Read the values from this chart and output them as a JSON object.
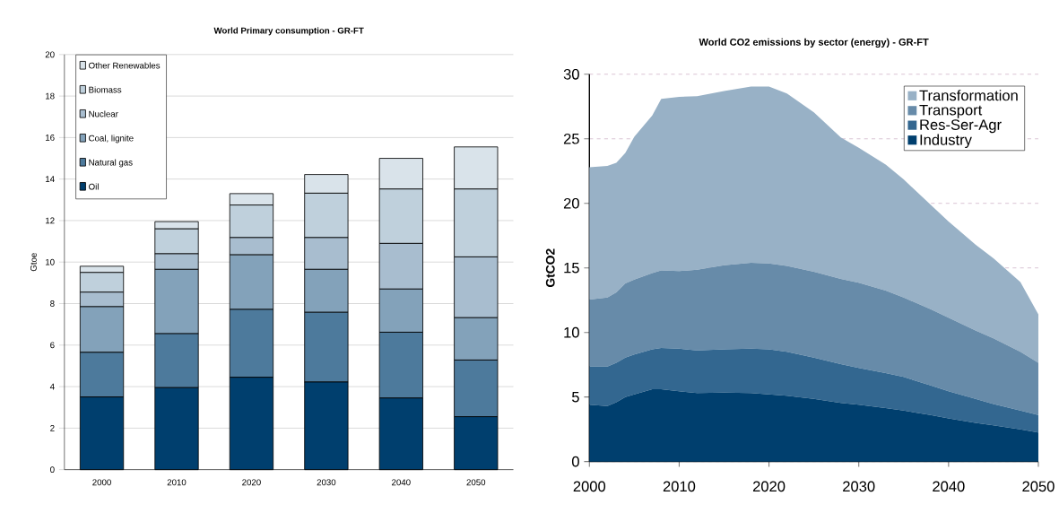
{
  "chart_data": [
    {
      "type": "bar",
      "stacked": true,
      "title": "World Primary  consumption - GR-FT",
      "ylabel": "Gtoe",
      "categories": [
        "2000",
        "2010",
        "2020",
        "2030",
        "2040",
        "2050"
      ],
      "ylim": [
        0,
        20
      ],
      "yticks": [
        0,
        2,
        4,
        6,
        8,
        10,
        12,
        14,
        16,
        18,
        20
      ],
      "grid": "y",
      "legend": "top left",
      "series": [
        {
          "name": "Oil",
          "color": "#003f6e",
          "values": [
            3.5,
            3.95,
            4.45,
            4.22,
            3.45,
            2.55
          ]
        },
        {
          "name": "Natural gas",
          "color": "#4d7a9c",
          "values": [
            2.15,
            2.6,
            3.27,
            3.36,
            3.17,
            2.73
          ]
        },
        {
          "name": "Coal, lignite",
          "color": "#83a2ba",
          "values": [
            2.2,
            3.1,
            2.63,
            2.07,
            2.08,
            2.04
          ]
        },
        {
          "name": "Nuclear",
          "color": "#a8bdcf",
          "values": [
            0.7,
            0.75,
            0.83,
            1.53,
            2.2,
            2.93
          ]
        },
        {
          "name": "Biomass",
          "color": "#bfd0dc",
          "values": [
            0.95,
            1.2,
            1.57,
            2.14,
            2.62,
            3.27
          ]
        },
        {
          "name": "Other Renewables",
          "color": "#d9e3ea",
          "values": [
            0.3,
            0.35,
            0.55,
            0.9,
            1.48,
            2.03
          ]
        }
      ]
    },
    {
      "type": "area",
      "stacked": true,
      "title": "World CO2 emissions by sector (energy) - GR-FT",
      "ylabel": "GtCO2",
      "x": [
        2000,
        2002,
        2003,
        2004,
        2005,
        2007,
        2008,
        2010,
        2012,
        2015,
        2018,
        2020,
        2022,
        2025,
        2028,
        2030,
        2033,
        2035,
        2038,
        2040,
        2043,
        2045,
        2048,
        2050
      ],
      "xlim": [
        2000,
        2050
      ],
      "xticks": [
        2000,
        2010,
        2020,
        2030,
        2040,
        2050
      ],
      "ylim": [
        0,
        30
      ],
      "yticks": [
        0,
        5,
        10,
        15,
        20,
        25,
        30
      ],
      "grid": "y",
      "legend": "top right",
      "series": [
        {
          "name": "Industry",
          "color": "#003f6e",
          "values": [
            4.4,
            4.3,
            4.6,
            5.0,
            5.2,
            5.6,
            5.6,
            5.45,
            5.3,
            5.35,
            5.3,
            5.2,
            5.1,
            4.85,
            4.55,
            4.4,
            4.15,
            3.95,
            3.6,
            3.35,
            3.0,
            2.8,
            2.5,
            2.25
          ]
        },
        {
          "name": "Res-Ser-Agr",
          "color": "#336790",
          "values": [
            2.95,
            3.05,
            3.05,
            3.05,
            3.1,
            3.1,
            3.2,
            3.3,
            3.3,
            3.35,
            3.45,
            3.5,
            3.4,
            3.2,
            3.0,
            2.85,
            2.7,
            2.6,
            2.3,
            2.1,
            1.85,
            1.65,
            1.45,
            1.35
          ]
        },
        {
          "name": "Transport",
          "color": "#678ba9",
          "values": [
            5.2,
            5.35,
            5.45,
            5.75,
            5.8,
            5.9,
            6.0,
            6.0,
            6.25,
            6.5,
            6.65,
            6.65,
            6.65,
            6.65,
            6.6,
            6.6,
            6.4,
            6.15,
            5.9,
            5.7,
            5.3,
            5.1,
            4.55,
            4.05
          ]
        },
        {
          "name": "Transformation",
          "color": "#98b1c6",
          "values": [
            10.25,
            10.2,
            10.05,
            10.1,
            11.05,
            12.2,
            13.3,
            13.5,
            13.45,
            13.5,
            13.65,
            13.7,
            13.35,
            12.35,
            10.95,
            10.45,
            9.75,
            9.15,
            8.1,
            7.45,
            6.65,
            6.2,
            5.4,
            3.75
          ]
        }
      ]
    }
  ]
}
